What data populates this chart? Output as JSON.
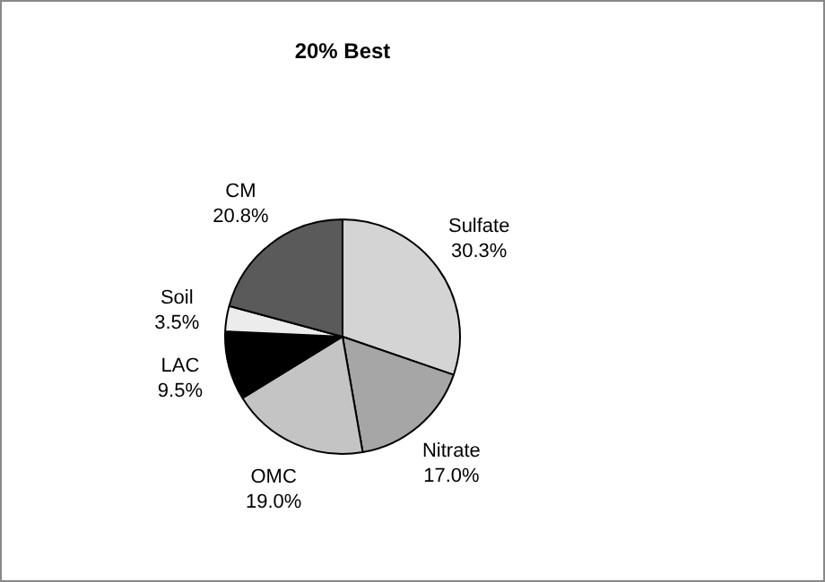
{
  "chart_data": {
    "type": "pie",
    "title": "20% Best",
    "categories": [
      "Sulfate",
      "Nitrate",
      "OMC",
      "LAC",
      "Soil",
      "CM"
    ],
    "values": [
      30.3,
      17.0,
      19.0,
      9.5,
      3.5,
      20.8
    ],
    "value_labels": [
      "30.3%",
      "17.0%",
      "19.0%",
      "9.5%",
      "3.5%",
      "20.8%"
    ],
    "colors": [
      "#d4d4d4",
      "#a6a6a6",
      "#c4c4c4",
      "#000000",
      "#ececec",
      "#5a5a5a"
    ],
    "legend": false
  }
}
